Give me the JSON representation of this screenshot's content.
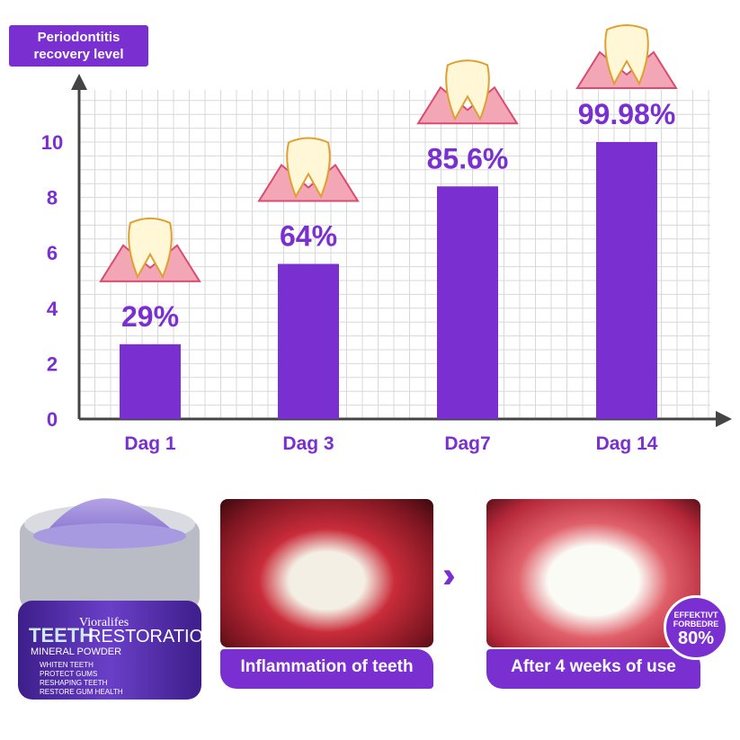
{
  "chart_data": {
    "type": "bar",
    "title": "Periodontitis recovery level",
    "categories": [
      "Dag 1",
      "Dag 3",
      "Dag7",
      "Dag 14"
    ],
    "values": [
      2.7,
      5.6,
      8.4,
      10
    ],
    "data_labels": [
      "29%",
      "64%",
      "85.6%",
      "99.98%"
    ],
    "yticks": [
      0,
      2,
      4,
      6,
      8,
      10
    ],
    "ylim": [
      0,
      11.5
    ],
    "grid": true,
    "colors": {
      "bar": "#7a2fd0",
      "text": "#7a2fd0",
      "axis": "#444444"
    }
  },
  "title_lines": [
    "Periodontitis",
    "recovery level"
  ],
  "product": {
    "brand": "Vioralifes",
    "name_a": "TEETH",
    "name_b": "RESTORATION",
    "sub": "MINERAL POWDER",
    "features": [
      "WHITEN TEETH",
      "PROTECT GUMS",
      "RESHAPING TEETH",
      "RESTORE GUM HEALTH"
    ]
  },
  "before": {
    "caption": "Inflammation of teeth"
  },
  "after": {
    "caption": "After 4 weeks of use"
  },
  "arrow_icon": "double-chevron-right-icon",
  "badge": {
    "line1": "EFFEKTIVT",
    "line2": "FORBEDRE",
    "value": "80%"
  }
}
